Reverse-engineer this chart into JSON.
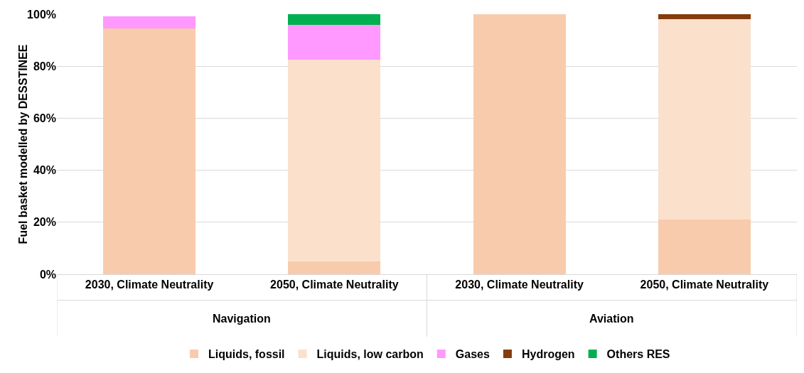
{
  "chart_data": {
    "type": "bar",
    "stacked": true,
    "ylabel": "Fuel basket modelled by DESSTINEE",
    "categories": [
      "2030, Climate Neutrality",
      "2050, Climate Neutrality",
      "2030, Climate Neutrality",
      "2050, Climate Neutrality"
    ],
    "annotations": [
      "Navigation",
      "Aviation"
    ],
    "series": [
      {
        "name": "Liquids, fossil",
        "color": "#f8cbad",
        "values": [
          94.5,
          5,
          100,
          21
        ]
      },
      {
        "name": "Liquids, low carbon",
        "color": "#fbe0cc",
        "values": [
          0,
          77.5,
          0,
          77
        ]
      },
      {
        "name": "Gases",
        "color": "#ff99ff",
        "values": [
          4.7,
          13.5,
          0,
          0
        ]
      },
      {
        "name": "Hydrogen",
        "color": "#843c0c",
        "values": [
          0,
          0,
          0,
          2
        ]
      },
      {
        "name": "Others RES",
        "color": "#00b050",
        "values": [
          0,
          4,
          0,
          0
        ]
      }
    ],
    "ylim": [
      0,
      100
    ],
    "yticks": [
      {
        "value": 0,
        "label": "0%"
      },
      {
        "value": 20,
        "label": "20%"
      },
      {
        "value": 40,
        "label": "40%"
      },
      {
        "value": 60,
        "label": "60%"
      },
      {
        "value": 80,
        "label": "80%"
      },
      {
        "value": 100,
        "label": "100%"
      }
    ],
    "grid": "y",
    "legend": "bottom"
  }
}
